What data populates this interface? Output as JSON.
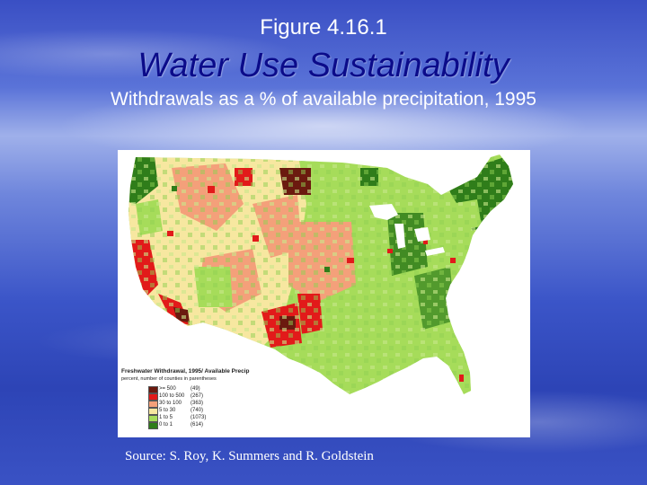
{
  "slide": {
    "figure_number": "Figure 4.16.1",
    "title": "Water Use Sustainability",
    "subtitle": "Withdrawals as a % of available precipitation, 1995",
    "source": "Source:  S. Roy, K. Summers and R. Goldstein"
  },
  "map": {
    "legend": {
      "title": "Freshwater Withdrawal, 1995/ Available Precip",
      "subtitle": "percent, number of counties in parentheses",
      "classes": [
        {
          "range": ">= 500",
          "count": "(49)",
          "color": "#6b1a0f"
        },
        {
          "range": "100 to 500",
          "count": "(267)",
          "color": "#e21a1a"
        },
        {
          "range": "30 to 100",
          "count": "(363)",
          "color": "#f4a07a"
        },
        {
          "range": "5 to 30",
          "count": "(740)",
          "color": "#f7e7a0"
        },
        {
          "range": "1 to 5",
          "count": "(1073)",
          "color": "#a6dc5a"
        },
        {
          "range": "0 to 1",
          "count": "(614)",
          "color": "#2f7d1a"
        }
      ]
    }
  }
}
